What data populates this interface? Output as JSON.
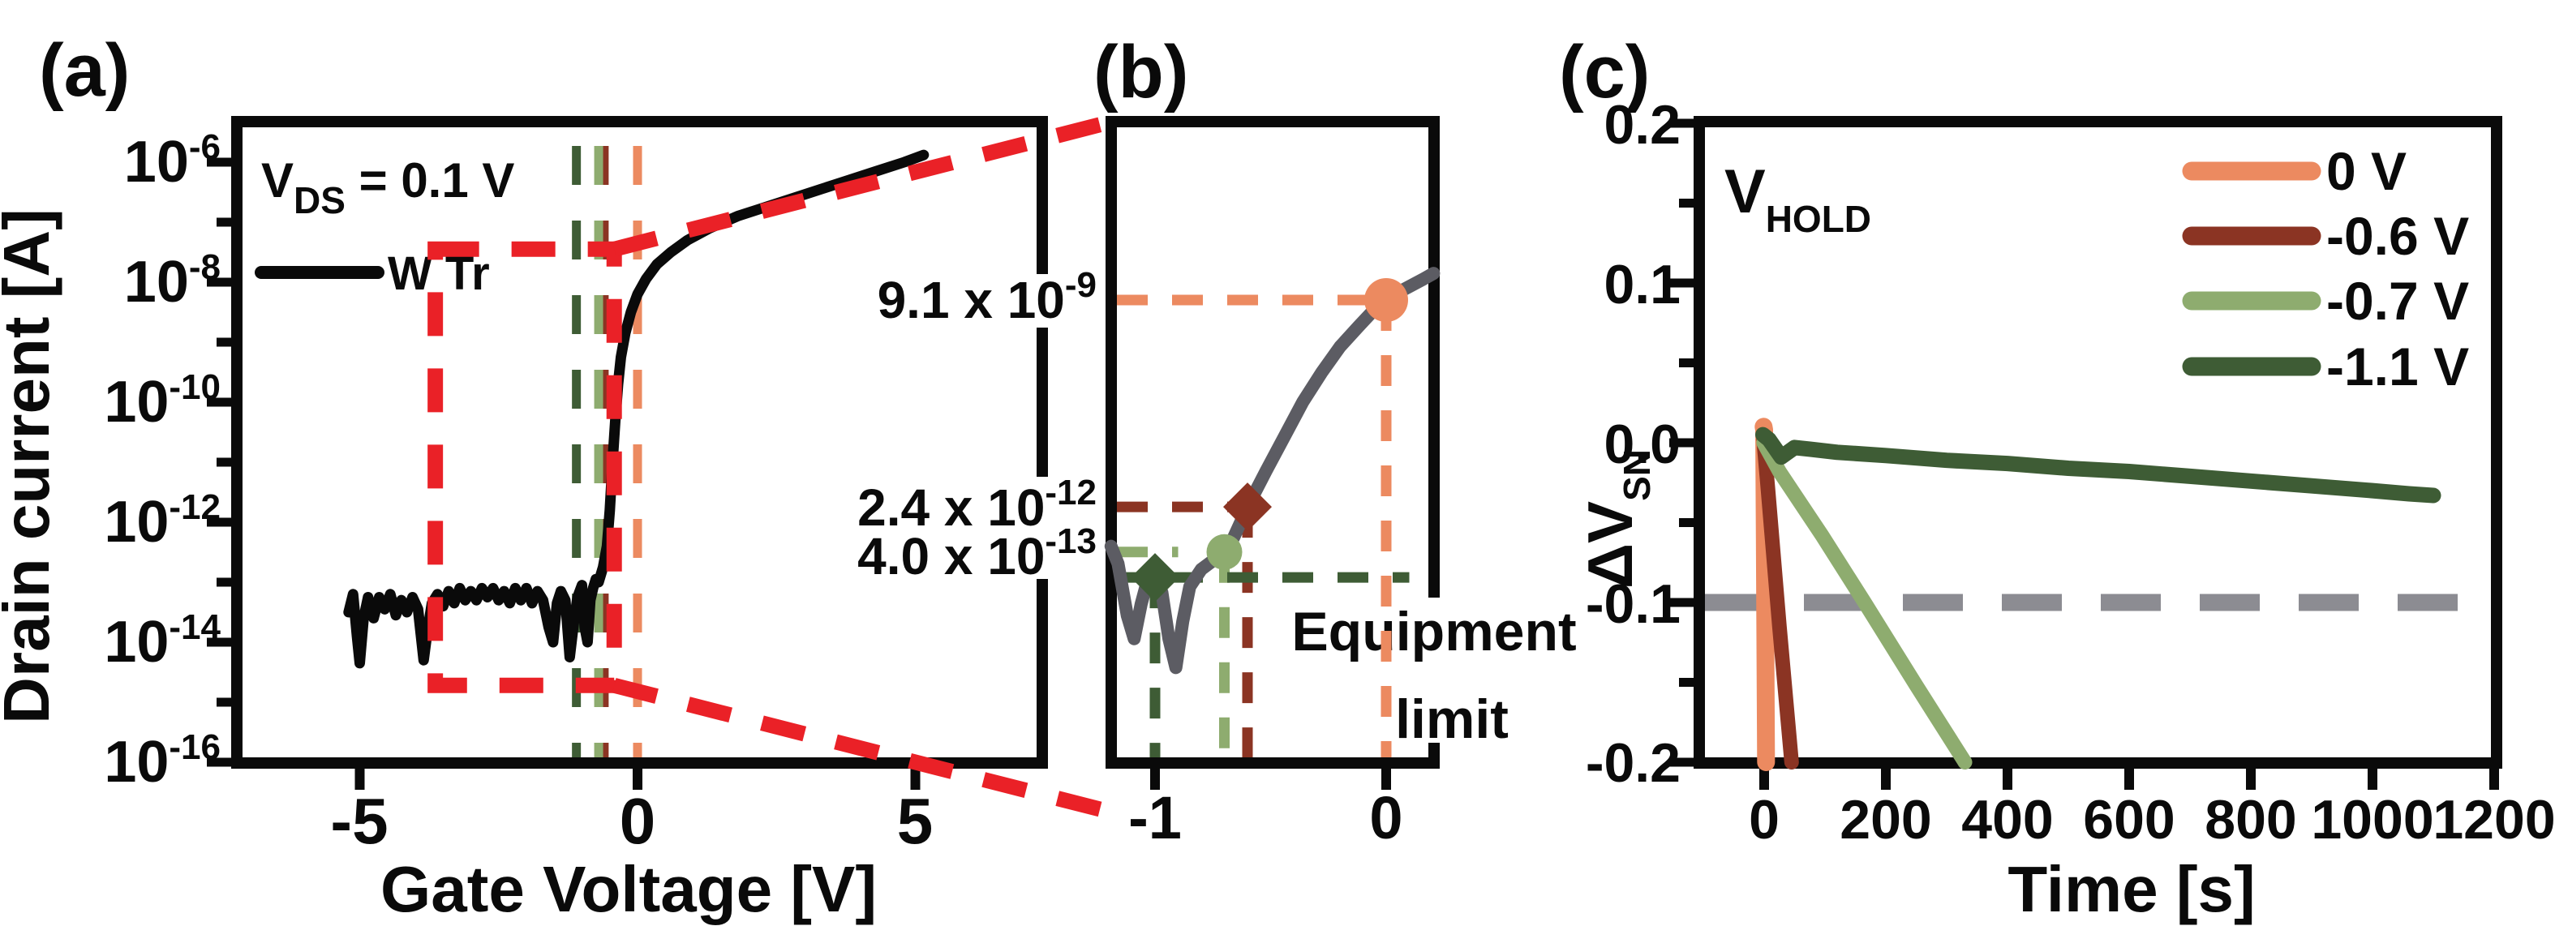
{
  "figure": {
    "panel_labels": {
      "a": "(a)",
      "b": "(b)",
      "c": "(c)"
    }
  },
  "chart_data": {
    "type": "line",
    "panels": [
      {
        "id": "a",
        "xlabel": "Gate Voltage [V]",
        "ylabel": "Drain current [A]",
        "annotation": {
          "pre": "V",
          "sub": "DS",
          "post": " = 0.1 V"
        },
        "legend": {
          "series_label": "W Tr",
          "series_color": "#0a0a0a"
        },
        "xlim": [
          -7.2,
          7.25
        ],
        "x_ticks": [
          -5,
          0,
          5
        ],
        "x_tick_labels": [
          "-5",
          "0",
          "5"
        ],
        "y_log": true,
        "y_major_exponents": [
          -6,
          -8,
          -10,
          -12,
          -14,
          -16
        ],
        "y_minor_exponents": [
          -7,
          -9,
          -11,
          -13,
          -15
        ],
        "y_tick_labels": [
          {
            "base": "10",
            "exp": "-6"
          },
          {
            "base": "10",
            "exp": "-8"
          },
          {
            "base": "10",
            "exp": "-10"
          },
          {
            "base": "10",
            "exp": "-12"
          },
          {
            "base": "10",
            "exp": "-14"
          },
          {
            "base": "10",
            "exp": "-16"
          }
        ],
        "hold_voltage_lines": [
          {
            "name": "0 V",
            "x": 0,
            "color": "#EC8A60"
          },
          {
            "name": "-0.6 V",
            "x": -0.6,
            "color": "#8B3423"
          },
          {
            "name": "-0.7 V",
            "x": -0.7,
            "color": "#8EAC6F"
          },
          {
            "name": "-1.1 V",
            "x": -1.1,
            "color": "#3E5C35"
          }
        ],
        "zoom_box": {
          "x": [
            -3.64,
            -0.42
          ],
          "y_log": [
            -14.72,
            -7.45
          ],
          "color": "#EA2127"
        },
        "series": [
          {
            "name": "W Tr",
            "color": "#0a0a0a",
            "points": [
              [
                -5.2,
                -13.5
              ],
              [
                -5.12,
                -13.2
              ],
              [
                -5.05,
                -13.9
              ],
              [
                -5.0,
                -14.35
              ],
              [
                -4.93,
                -13.6
              ],
              [
                -4.85,
                -13.25
              ],
              [
                -4.75,
                -13.6
              ],
              [
                -4.65,
                -13.25
              ],
              [
                -4.55,
                -13.45
              ],
              [
                -4.45,
                -13.2
              ],
              [
                -4.35,
                -13.55
              ],
              [
                -4.25,
                -13.3
              ],
              [
                -4.15,
                -13.5
              ],
              [
                -4.05,
                -13.25
              ],
              [
                -3.95,
                -13.45
              ],
              [
                -3.85,
                -14.3
              ],
              [
                -3.78,
                -13.8
              ],
              [
                -3.7,
                -13.35
              ],
              [
                -3.6,
                -13.2
              ],
              [
                -3.5,
                -13.4
              ],
              [
                -3.4,
                -13.15
              ],
              [
                -3.3,
                -13.35
              ],
              [
                -3.2,
                -13.1
              ],
              [
                -3.1,
                -13.3
              ],
              [
                -3.0,
                -13.15
              ],
              [
                -2.9,
                -13.3
              ],
              [
                -2.8,
                -13.1
              ],
              [
                -2.7,
                -13.25
              ],
              [
                -2.6,
                -13.1
              ],
              [
                -2.5,
                -13.3
              ],
              [
                -2.4,
                -13.15
              ],
              [
                -2.3,
                -13.35
              ],
              [
                -2.2,
                -13.1
              ],
              [
                -2.1,
                -13.3
              ],
              [
                -2.0,
                -13.1
              ],
              [
                -1.9,
                -13.35
              ],
              [
                -1.8,
                -13.15
              ],
              [
                -1.7,
                -13.3
              ],
              [
                -1.6,
                -13.75
              ],
              [
                -1.52,
                -14.0
              ],
              [
                -1.45,
                -13.35
              ],
              [
                -1.38,
                -13.15
              ],
              [
                -1.3,
                -13.3
              ],
              [
                -1.22,
                -14.25
              ],
              [
                -1.15,
                -13.7
              ],
              [
                -1.08,
                -13.25
              ],
              [
                -1.0,
                -13.05
              ],
              [
                -0.95,
                -13.75
              ],
              [
                -0.9,
                -14.0
              ],
              [
                -0.85,
                -13.3
              ],
              [
                -0.8,
                -13.1
              ],
              [
                -0.75,
                -12.95
              ],
              [
                -0.7,
                -13.0
              ],
              [
                -0.62,
                -12.75
              ],
              [
                -0.55,
                -12.4
              ],
              [
                -0.5,
                -11.8
              ],
              [
                -0.45,
                -11.0
              ],
              [
                -0.4,
                -10.3
              ],
              [
                -0.35,
                -9.7
              ],
              [
                -0.3,
                -9.25
              ],
              [
                -0.22,
                -8.85
              ],
              [
                -0.12,
                -8.5
              ],
              [
                0.0,
                -8.2
              ],
              [
                0.15,
                -7.95
              ],
              [
                0.35,
                -7.7
              ],
              [
                0.6,
                -7.5
              ],
              [
                0.9,
                -7.3
              ],
              [
                1.3,
                -7.1
              ],
              [
                1.8,
                -6.9
              ],
              [
                2.3,
                -6.75
              ],
              [
                2.8,
                -6.6
              ],
              [
                3.3,
                -6.45
              ],
              [
                3.8,
                -6.3
              ],
              [
                4.3,
                -6.15
              ],
              [
                4.8,
                -6.0
              ],
              [
                5.15,
                -5.88
              ]
            ]
          }
        ]
      },
      {
        "id": "b",
        "xlim": [
          -1.19,
          0.207
        ],
        "x_ticks": [
          -1,
          0
        ],
        "x_tick_labels": [
          "-1",
          "0"
        ],
        "y_log": true,
        "curve": {
          "color": "#5C5C63",
          "points": [
            [
              -1.19,
              -12.3
            ],
            [
              -1.16,
              -12.6
            ],
            [
              -1.12,
              -13.5
            ],
            [
              -1.09,
              -13.9
            ],
            [
              -1.06,
              -13.3
            ],
            [
              -1.03,
              -12.85
            ],
            [
              -1.0,
              -12.8
            ],
            [
              -0.97,
              -13.1
            ],
            [
              -0.94,
              -13.9
            ],
            [
              -0.91,
              -14.4
            ],
            [
              -0.88,
              -13.6
            ],
            [
              -0.85,
              -13.0
            ],
            [
              -0.8,
              -12.7
            ],
            [
              -0.75,
              -12.55
            ],
            [
              -0.7,
              -12.4
            ],
            [
              -0.66,
              -12.15
            ],
            [
              -0.62,
              -11.8
            ],
            [
              -0.6,
              -11.62
            ],
            [
              -0.52,
              -11.0
            ],
            [
              -0.44,
              -10.4
            ],
            [
              -0.36,
              -9.8
            ],
            [
              -0.28,
              -9.3
            ],
            [
              -0.2,
              -8.85
            ],
            [
              -0.12,
              -8.5
            ],
            [
              -0.05,
              -8.2
            ],
            [
              0.0,
              -8.04
            ],
            [
              0.08,
              -7.85
            ],
            [
              0.16,
              -7.68
            ],
            [
              0.205,
              -7.58
            ]
          ]
        },
        "marked_points": [
          {
            "x": 0,
            "y_log": -8.041,
            "value": 9.1e-09,
            "marker": "circle",
            "color": "#EC8A60",
            "h_to": 0,
            "label": {
              "pre": "9.1 x 10",
              "exp": "-9"
            }
          },
          {
            "x": -0.6,
            "y_log": -11.62,
            "value": 2.4e-12,
            "marker": "diamond",
            "color": "#8B3423",
            "h_to": -0.6,
            "label": {
              "pre": "2.4 x 10",
              "exp": "-12"
            }
          },
          {
            "x": -0.7,
            "y_log": -12.4,
            "value": 4e-13,
            "marker": "circle",
            "color": "#8EAC6F",
            "h_to": -0.9,
            "label": {
              "pre": "4.0 x 10",
              "exp": "-13"
            }
          },
          {
            "x": -1.0,
            "y_log": -12.84,
            "marker": "diamond",
            "color": "#3E5C35",
            "h_to": 0.1,
            "label": null
          }
        ],
        "equipment_limit": {
          "line1": "Equipment",
          "line2": "limit",
          "text_color": "#4E7448",
          "line_color": "#3E5C35"
        }
      },
      {
        "id": "c",
        "xlabel": "Time [s]",
        "ylabel": {
          "pre": "ΔV",
          "sub": "SN"
        },
        "annotation": {
          "pre": "V",
          "sub": "HOLD"
        },
        "xlim": [
          -107,
          1204
        ],
        "x_ticks": [
          0,
          200,
          400,
          600,
          800,
          1000,
          1200
        ],
        "x_tick_labels": [
          "0",
          "200",
          "400",
          "600",
          "800",
          "1000",
          "1200"
        ],
        "ylim": [
          -0.2,
          0.2
        ],
        "y_ticks": [
          0.2,
          0.1,
          0.0,
          -0.1,
          -0.2
        ],
        "y_tick_labels": [
          "0.2",
          "0.1",
          "0.0",
          "-0.1",
          "-0.2"
        ],
        "y_minor_ticks": [
          0.15,
          0.05,
          -0.05,
          -0.15
        ],
        "ref_line": {
          "y": -0.1,
          "color": "#8C8C92"
        },
        "legend_title": {
          "pre": "V",
          "sub": "HOLD"
        },
        "series": [
          {
            "name": "0 V",
            "color": "#EC8A60",
            "width": 22,
            "points": [
              [
                -1,
                0.01
              ],
              [
                0,
                0.008
              ],
              [
                1,
                -0.06
              ],
              [
                3,
                -0.2
              ]
            ]
          },
          {
            "name": "-0.6 V",
            "color": "#8B3423",
            "width": 18,
            "points": [
              [
                -1,
                0.002
              ],
              [
                6,
                -0.028
              ],
              [
                25,
                -0.115
              ],
              [
                45,
                -0.2
              ]
            ]
          },
          {
            "name": "-0.7 V",
            "color": "#8EAC6F",
            "width": 18,
            "points": [
              [
                -1,
                0.0
              ],
              [
                25,
                -0.018
              ],
              [
                95,
                -0.058
              ],
              [
                165,
                -0.1
              ],
              [
                250,
                -0.152
              ],
              [
                330,
                -0.2
              ]
            ]
          },
          {
            "name": "-1.1 V",
            "color": "#3E5C35",
            "width": 19,
            "points": [
              [
                -2,
                0.005
              ],
              [
                8,
                0.002
              ],
              [
                28,
                -0.009
              ],
              [
                50,
                -0.003
              ],
              [
                75,
                -0.004
              ],
              [
                120,
                -0.006
              ],
              [
                200,
                -0.008
              ],
              [
                300,
                -0.011
              ],
              [
                400,
                -0.013
              ],
              [
                500,
                -0.016
              ],
              [
                600,
                -0.018
              ],
              [
                700,
                -0.021
              ],
              [
                800,
                -0.024
              ],
              [
                900,
                -0.027
              ],
              [
                1000,
                -0.03
              ],
              [
                1060,
                -0.032
              ],
              [
                1100,
                -0.033
              ]
            ]
          }
        ]
      }
    ]
  }
}
